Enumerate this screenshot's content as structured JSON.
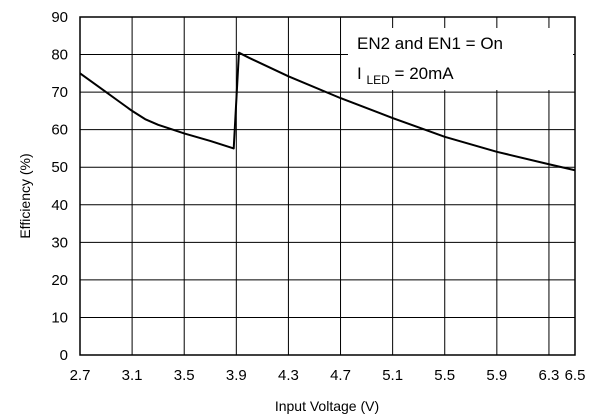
{
  "chart_data": {
    "type": "line",
    "title": "",
    "xlabel": "Input Voltage (V)",
    "ylabel": "Efficiency (%)",
    "xlim": [
      2.7,
      6.5
    ],
    "ylim": [
      0,
      90
    ],
    "x_ticks": [
      2.7,
      3.1,
      3.5,
      3.9,
      4.3,
      4.7,
      5.1,
      5.5,
      5.9,
      6.3,
      6.5
    ],
    "x_tick_labels": [
      "2.7",
      "3.1",
      "3.5",
      "3.9",
      "4.3",
      "4.7",
      "5.1",
      "5.5",
      "5.9",
      "6.3",
      "6.5"
    ],
    "y_ticks": [
      0,
      10,
      20,
      30,
      40,
      50,
      60,
      70,
      80,
      90
    ],
    "y_tick_labels": [
      "0",
      "10",
      "20",
      "30",
      "40",
      "50",
      "60",
      "70",
      "80",
      "90"
    ],
    "grid": true,
    "legend": "none",
    "annotation": {
      "line1": "EN2 and EN1 = On",
      "line2_main": "I",
      "line2_sub": "LED",
      "line2_rest": " = 20mA",
      "position": "top-right"
    },
    "series": [
      {
        "x": [
          2.7,
          2.8,
          2.9,
          3.0,
          3.1,
          3.2,
          3.3,
          3.5,
          3.7,
          3.88,
          3.92,
          4.0,
          4.3,
          4.7,
          5.1,
          5.5,
          5.9,
          6.3,
          6.5
        ],
        "y": [
          75,
          72.5,
          70,
          67.5,
          65,
          62.8,
          61.3,
          59,
          57,
          55,
          80.5,
          79.1,
          74.2,
          68.4,
          63.1,
          58.1,
          54.1,
          50.8,
          49.2
        ]
      }
    ],
    "colors": {
      "line": "#000000",
      "grid": "#000000",
      "axes": "#000000"
    }
  }
}
